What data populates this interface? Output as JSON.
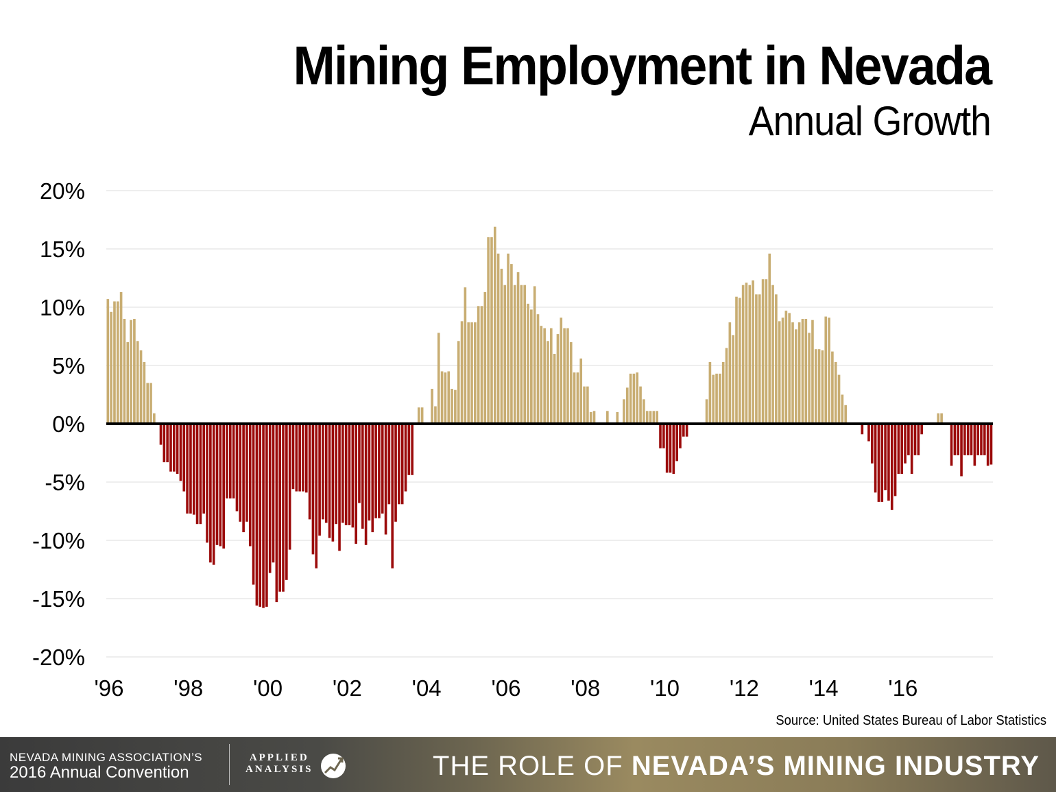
{
  "chart_data": {
    "type": "bar",
    "title": "Mining Employment in Nevada",
    "subtitle": "Annual Growth",
    "ylabel": "",
    "xlabel": "",
    "ylim": [
      -20,
      20
    ],
    "yticks": [
      "20%",
      "15%",
      "10%",
      "5%",
      "0%",
      "-5%",
      "-10%",
      "-15%",
      "-20%"
    ],
    "ytick_values": [
      20,
      15,
      10,
      5,
      0,
      -5,
      -10,
      -15,
      -20
    ],
    "xticks": [
      "'96",
      "'98",
      "'00",
      "'02",
      "'04",
      "'06",
      "'08",
      "'10",
      "'12",
      "'14",
      "'16"
    ],
    "x_start": "1996-01",
    "frequency": "monthly",
    "grid": true,
    "positive_color": "#c8ad72",
    "negative_color": "#9b0a0a",
    "values": [
      10.7,
      9.6,
      10.5,
      10.5,
      11.3,
      9.0,
      7.0,
      8.9,
      9.0,
      7.1,
      6.3,
      5.3,
      3.5,
      3.5,
      0.9,
      0,
      -1.8,
      -3.3,
      -3.3,
      -4.1,
      -4.1,
      -4.3,
      -4.9,
      -5.8,
      -7.7,
      -7.7,
      -7.8,
      -8.6,
      -8.6,
      -7.7,
      -10.2,
      -11.9,
      -12.1,
      -10.4,
      -10.5,
      -10.7,
      -6.4,
      -6.4,
      -6.4,
      -7.5,
      -8.4,
      -9.3,
      -8.4,
      -10.5,
      -13.8,
      -15.6,
      -15.7,
      -15.8,
      -15.7,
      -12.8,
      -11.9,
      -15.3,
      -14.4,
      -14.4,
      -13.4,
      -10.8,
      -5.6,
      -5.8,
      -5.8,
      -5.8,
      -5.9,
      -8.2,
      -11.2,
      -12.4,
      -9.6,
      -8.2,
      -8.5,
      -9.8,
      -10.1,
      -8.6,
      -10.9,
      -8.5,
      -8.7,
      -8.7,
      -8.9,
      -10.3,
      -6.8,
      -9.0,
      -10.4,
      -8.3,
      -9.3,
      -8.1,
      -8.1,
      -7.7,
      -9.5,
      -6.9,
      -12.4,
      -8.4,
      -6.9,
      -6.9,
      -5.8,
      -4.4,
      -4.4,
      0,
      1.4,
      1.4,
      0,
      0,
      3.0,
      1.5,
      7.8,
      4.5,
      4.4,
      4.5,
      3.0,
      2.9,
      7.1,
      8.8,
      11.7,
      8.7,
      8.7,
      8.7,
      10.1,
      10.1,
      11.3,
      16.0,
      16.0,
      16.9,
      14.6,
      13.3,
      11.9,
      14.6,
      13.7,
      11.9,
      13.0,
      11.9,
      11.9,
      10.3,
      9.8,
      11.8,
      9.4,
      8.4,
      8.2,
      7.1,
      8.2,
      6.0,
      7.7,
      9.1,
      8.2,
      8.2,
      7.0,
      4.4,
      4.4,
      5.6,
      3.2,
      3.2,
      1.0,
      1.1,
      0,
      0,
      0,
      1.1,
      0,
      0,
      1.0,
      0,
      2.1,
      3.1,
      4.3,
      4.3,
      4.4,
      3.2,
      2.1,
      1.1,
      1.1,
      1.1,
      1.1,
      -2.1,
      -2.1,
      -4.2,
      -4.2,
      -4.3,
      -3.2,
      -2.1,
      -1.1,
      -1.1,
      0,
      0,
      0,
      0,
      0,
      2.1,
      5.3,
      4.2,
      4.3,
      4.3,
      5.3,
      6.5,
      8.7,
      7.6,
      10.9,
      10.8,
      11.9,
      12.1,
      11.9,
      12.3,
      11.1,
      11.1,
      12.4,
      12.4,
      14.6,
      11.9,
      11.1,
      8.8,
      9.1,
      9.7,
      9.5,
      8.7,
      8.1,
      8.7,
      9.0,
      9.0,
      7.8,
      8.9,
      6.4,
      6.4,
      6.3,
      9.2,
      9.1,
      6.2,
      5.3,
      4.2,
      2.5,
      1.6,
      0,
      0,
      0,
      0,
      -0.9,
      0,
      -1.5,
      -3.4,
      -5.9,
      -6.7,
      -6.7,
      -5.7,
      -6.6,
      -7.4,
      -6.2,
      -4.3,
      -4.3,
      -3.4,
      -2.7,
      -4.3,
      -2.7,
      -2.7,
      -0.9,
      0,
      0,
      0,
      0,
      0.9,
      0.9,
      0,
      0,
      -3.6,
      -2.7,
      -2.7,
      -4.5,
      -2.7,
      -2.7,
      -2.7,
      -3.6,
      -2.7,
      -2.7,
      -2.7,
      -3.6,
      -3.5
    ]
  },
  "source": "Source: United States Bureau of Labor Statistics",
  "footer": {
    "org_line1": "NEVADA MINING ASSOCIATION’S",
    "org_line2": "2016 Annual Convention",
    "brand_line1": "APPLIED",
    "brand_line2": "ANALYSIS",
    "brand_icon": "applied-analysis-logo-icon",
    "tagline_prefix": "THE ROLE OF",
    "tagline_bold": "NEVADA’S MINING INDUSTRY"
  }
}
